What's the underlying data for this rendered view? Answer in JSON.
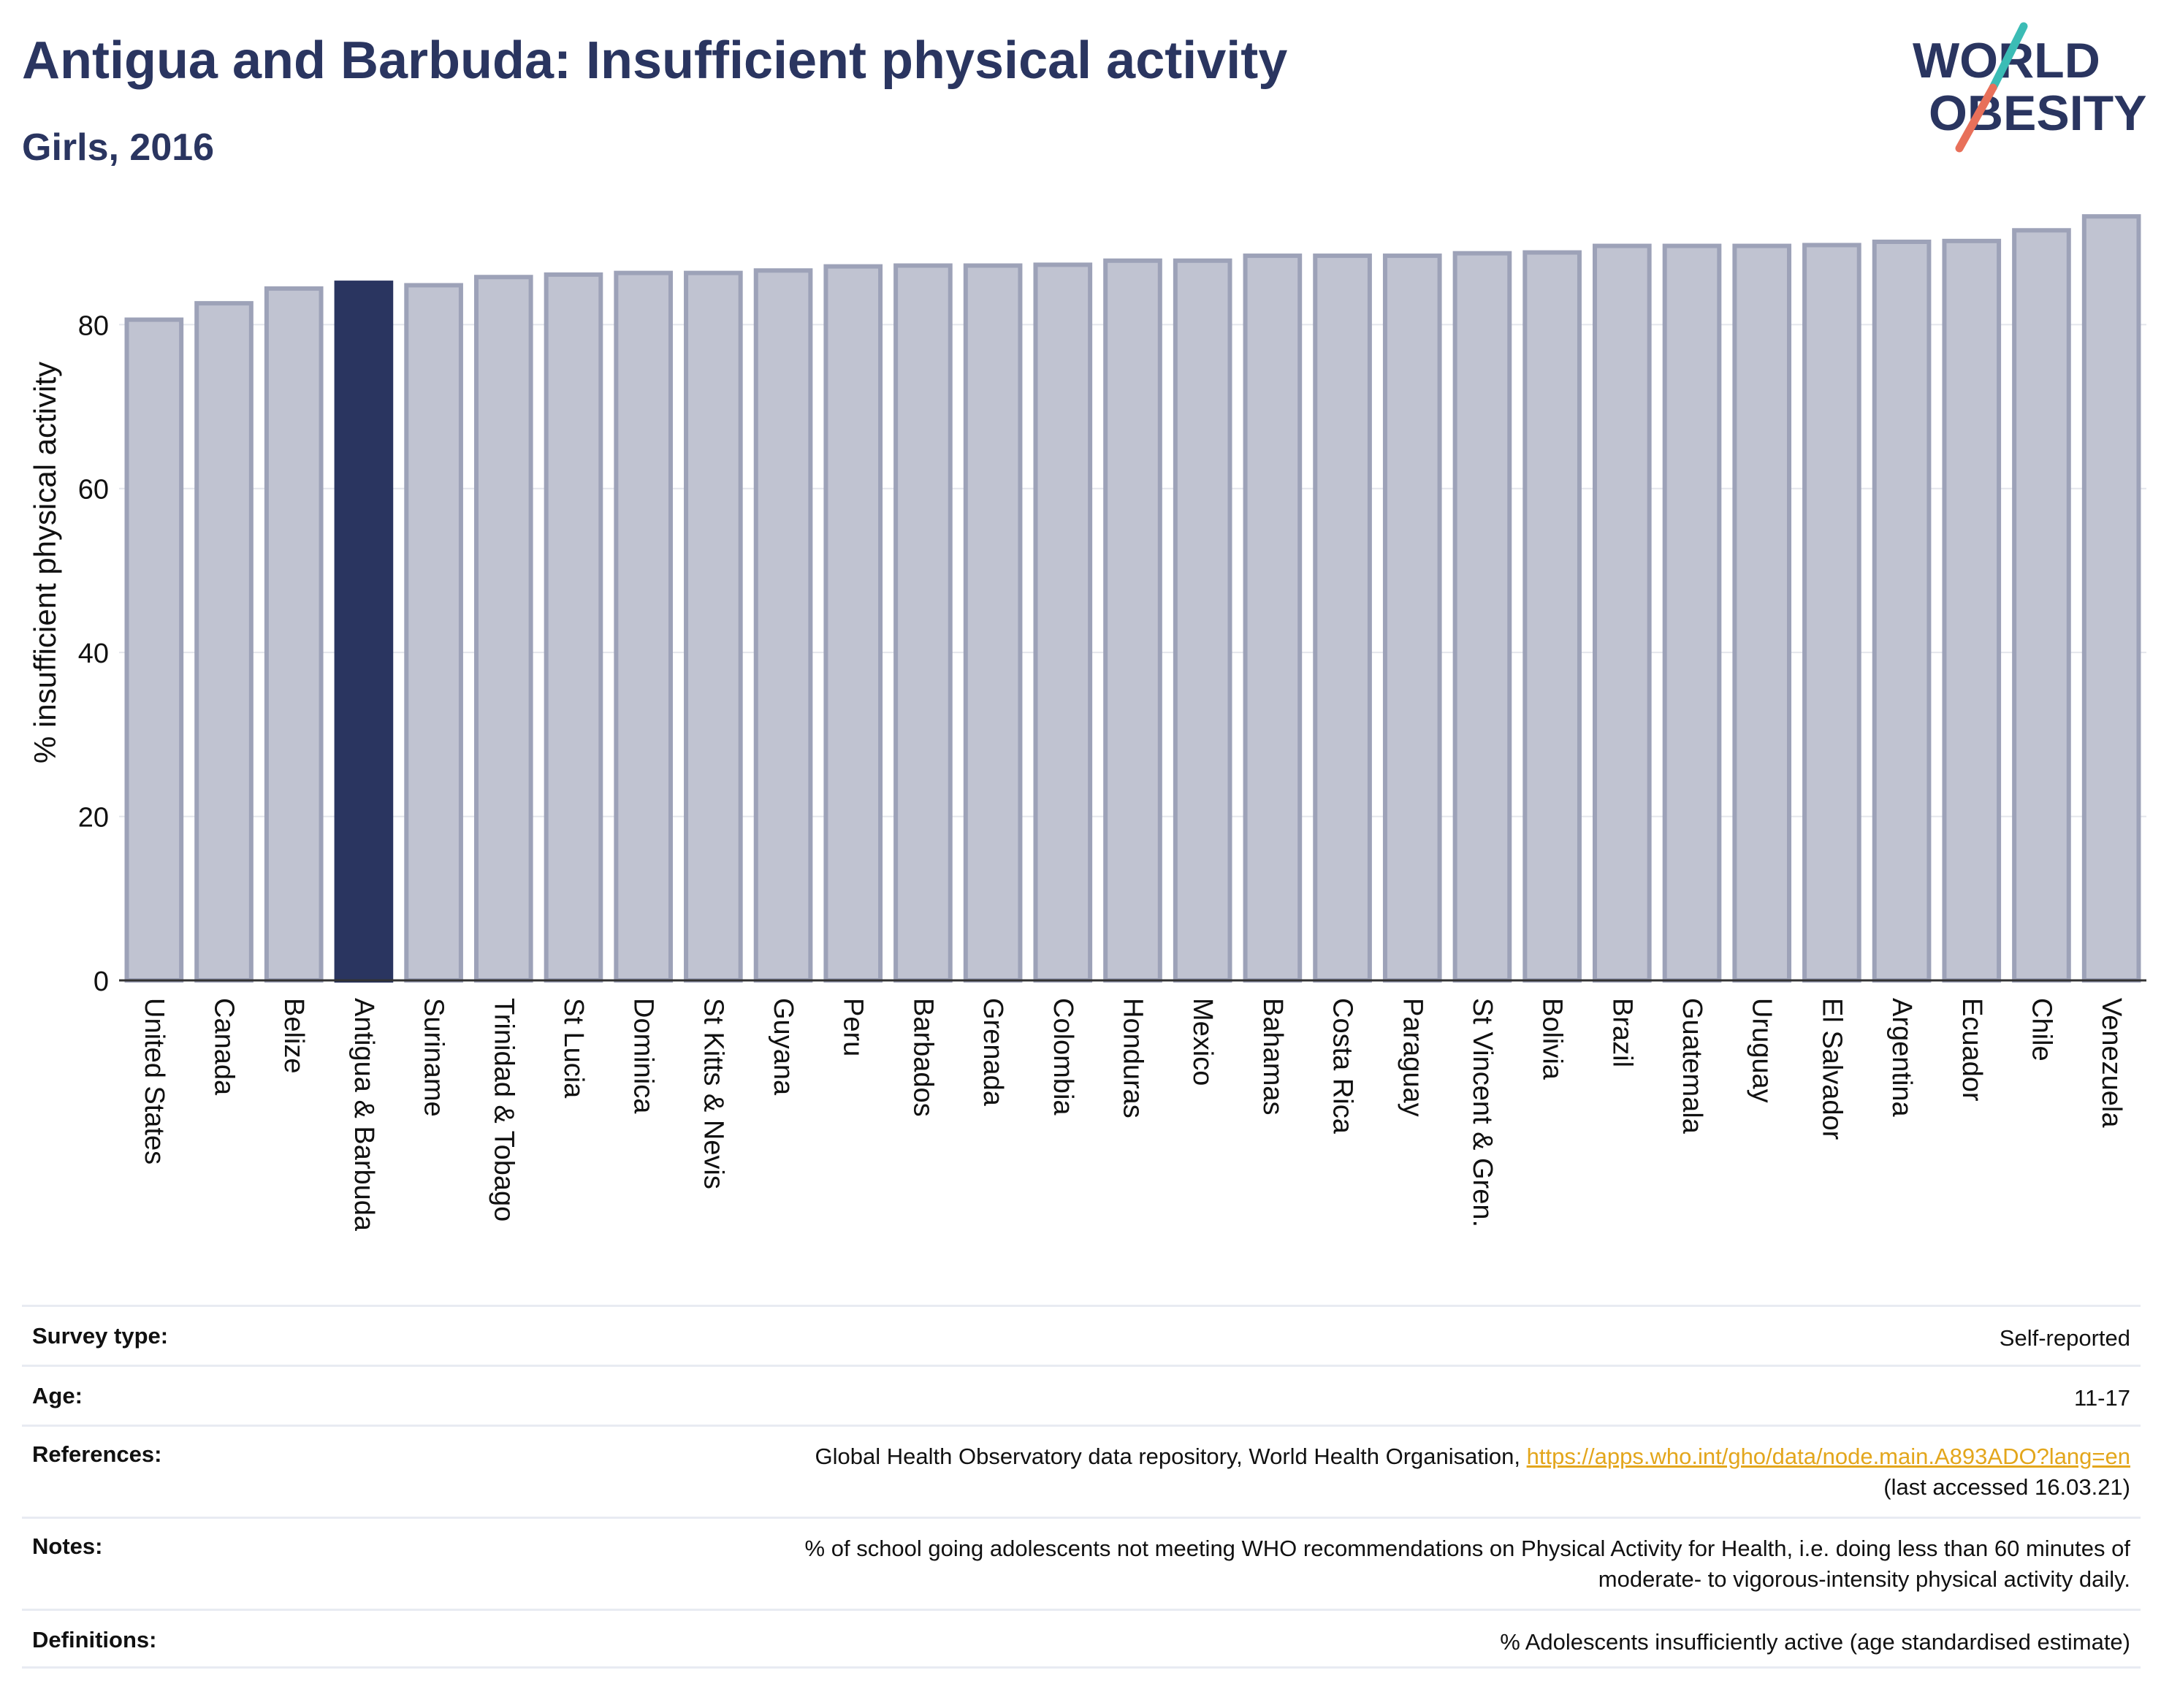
{
  "header": {
    "title": "Antigua and Barbuda: Insufficient physical activity",
    "subtitle": "Girls, 2016"
  },
  "logo": {
    "line1": "WORLD",
    "line2": "OBESITY",
    "accent_teal": "#3bbcb5",
    "accent_coral": "#e8705a",
    "text_color": "#2a3560"
  },
  "colors": {
    "bar": "#c0c3d1",
    "bar_stroke": "#9da2b8",
    "highlight": "#2a3560",
    "grid": "#e4e6ec",
    "axis": "#333333"
  },
  "chart_data": {
    "type": "bar",
    "ylabel": "% insufficient physical activity",
    "ylim": [
      0,
      95
    ],
    "yticks": [
      0,
      20,
      40,
      60,
      80
    ],
    "grid": true,
    "highlight": "Antigua & Barbuda",
    "categories": [
      "United States",
      "Canada",
      "Belize",
      "Antigua & Barbuda",
      "Suriname",
      "Trinidad & Tobago",
      "St Lucia",
      "Dominica",
      "St Kitts & Nevis",
      "Guyana",
      "Peru",
      "Barbados",
      "Grenada",
      "Colombia",
      "Honduras",
      "Mexico",
      "Bahamas",
      "Costa Rica",
      "Paraguay",
      "St Vincent & Gren.",
      "Bolivia",
      "Brazil",
      "Guatemala",
      "Uruguay",
      "El Salvador",
      "Argentina",
      "Ecuador",
      "Chile",
      "Venezuela"
    ],
    "values": [
      80.6,
      82.6,
      84.4,
      85.1,
      84.8,
      85.8,
      86.1,
      86.3,
      86.3,
      86.6,
      87.1,
      87.2,
      87.2,
      87.3,
      87.8,
      87.8,
      88.4,
      88.4,
      88.4,
      88.7,
      88.8,
      89.6,
      89.6,
      89.6,
      89.7,
      90.1,
      90.2,
      91.5,
      93.2
    ]
  },
  "meta": [
    {
      "key": "Survey type:",
      "value": "Self-reported"
    },
    {
      "key": "Age:",
      "value": "11-17"
    },
    {
      "key": "References:",
      "value": "Global Health Observatory data repository, World Health Organisation, ",
      "link": "https://apps.who.int/gho/data/node.main.A893ADO?lang=en",
      "value2": "(last accessed 16.03.21)"
    },
    {
      "key": "Notes:",
      "value": "% of school going adolescents not meeting WHO recommendations on Physical Activity for Health, i.e. doing less than 60 minutes of",
      "value2": "moderate- to vigorous-intensity physical activity daily."
    },
    {
      "key": "Definitions:",
      "value": "% Adolescents insufficiently active (age standardised estimate)"
    }
  ]
}
